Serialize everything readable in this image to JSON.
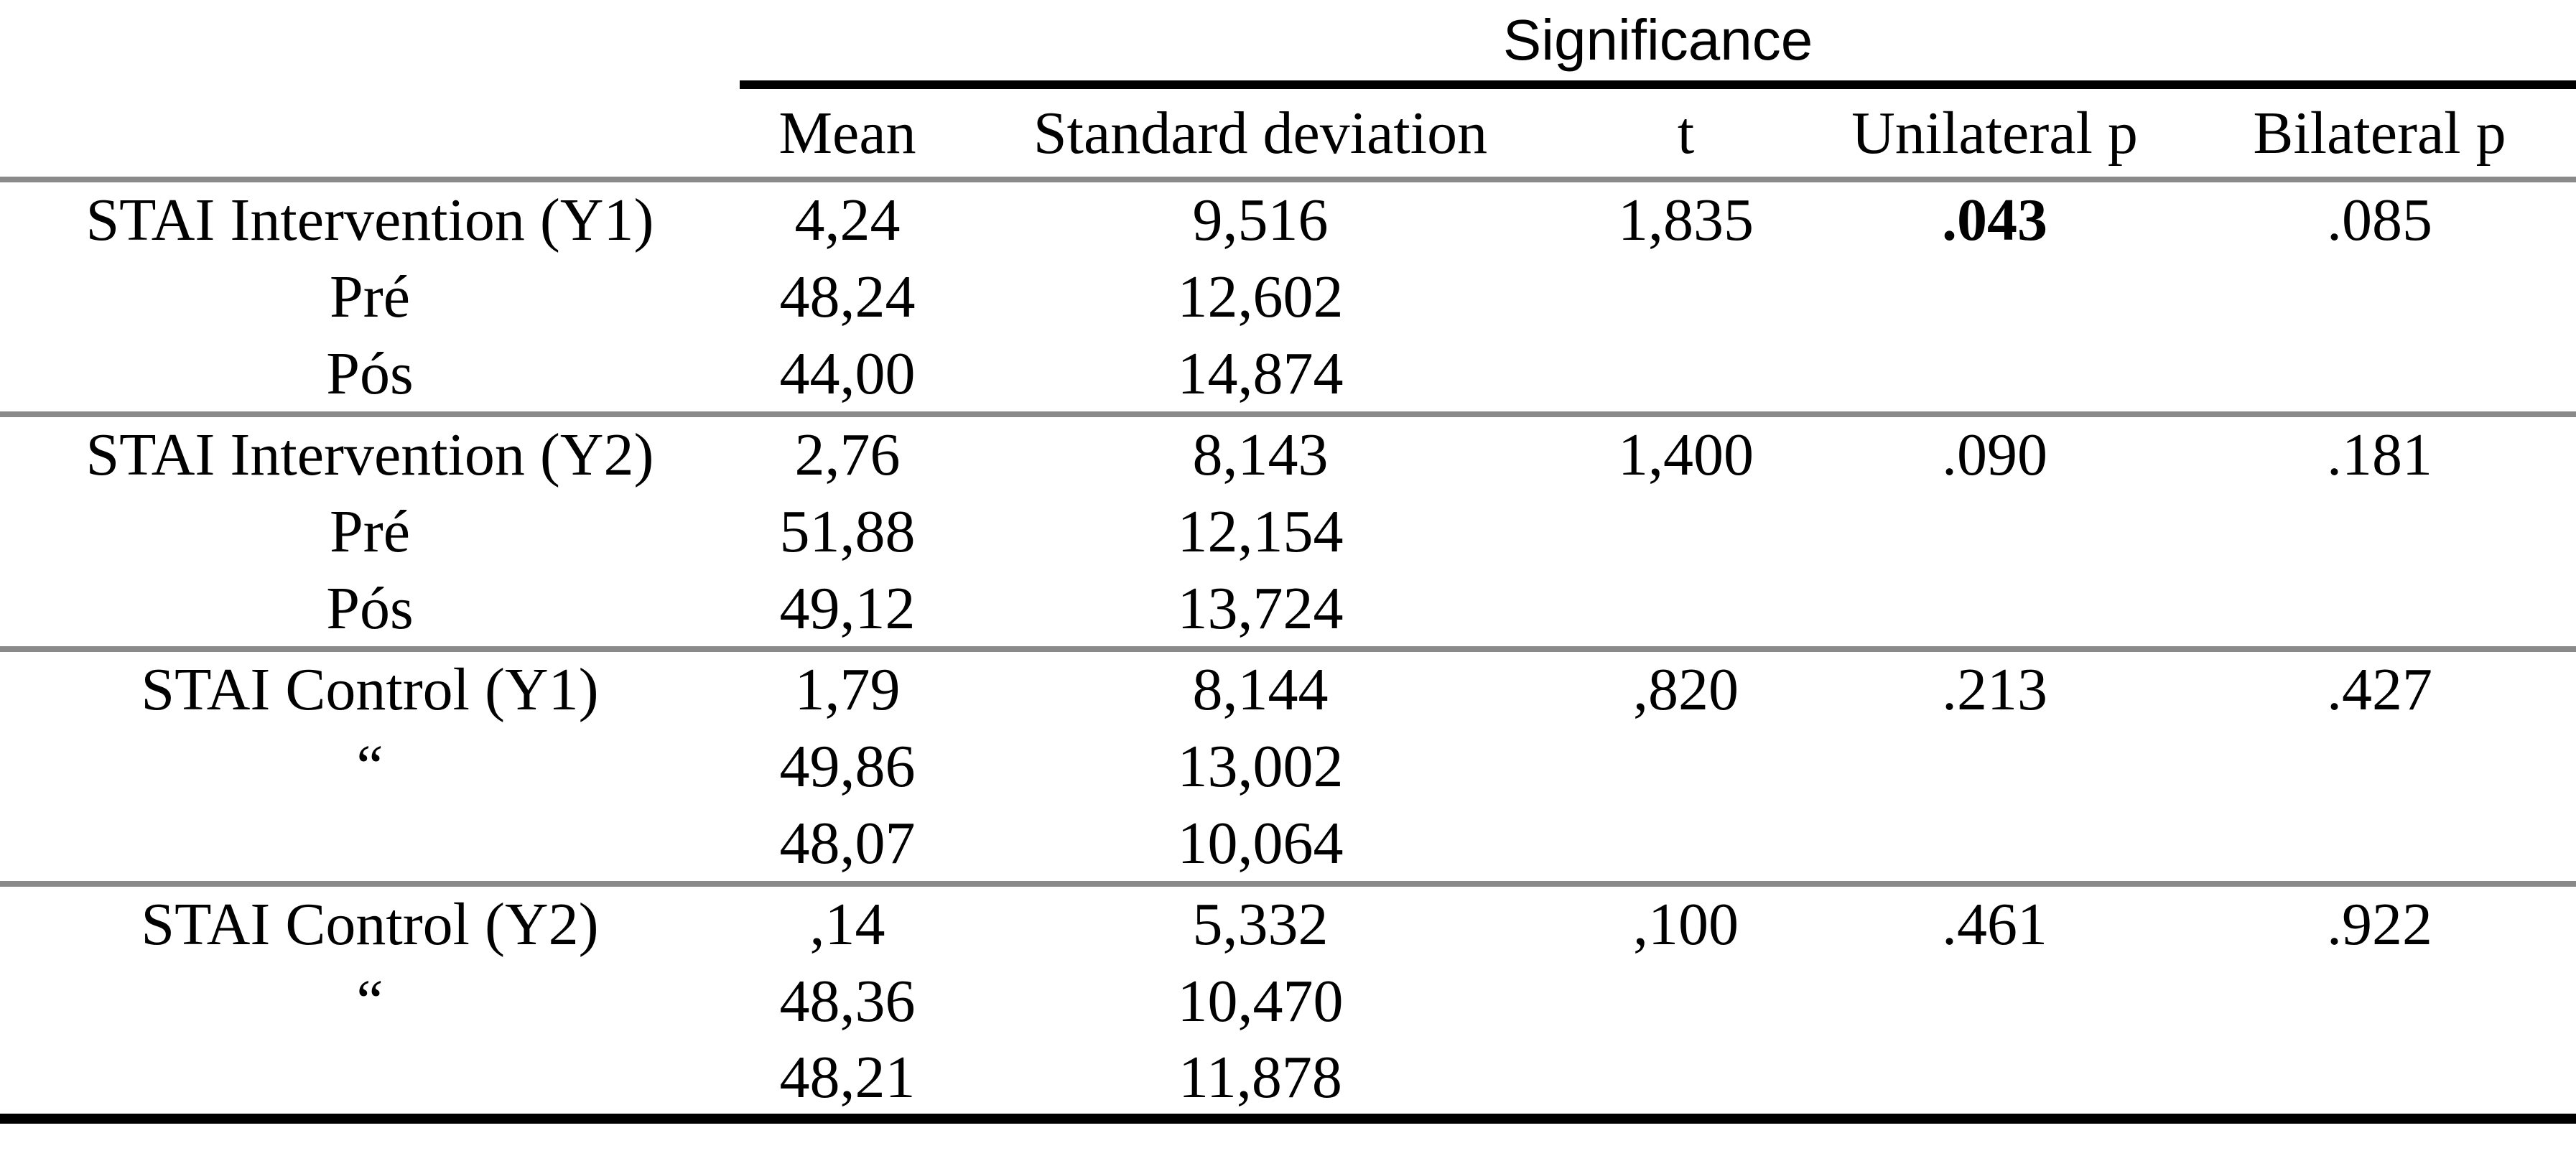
{
  "table": {
    "span_header": "Significance",
    "columns": {
      "label": "",
      "mean": "Mean",
      "sd": "Standard deviation",
      "t": "t",
      "unilateral_p": "Unilateral p",
      "bilateral_p": "Bilateral p"
    },
    "groups": [
      {
        "rows": [
          {
            "label": "STAI Intervention (Y1)",
            "mean": "4,24",
            "sd": "9,516",
            "t": "1,835",
            "unilateral_p": ".043",
            "bilateral_p": ".085"
          },
          {
            "label": "Pré",
            "mean": "48,24",
            "sd": "12,602",
            "t": "",
            "unilateral_p": "",
            "bilateral_p": ""
          },
          {
            "label": "Pós",
            "mean": "44,00",
            "sd": "14,874",
            "t": "",
            "unilateral_p": "",
            "bilateral_p": ""
          }
        ]
      },
      {
        "rows": [
          {
            "label": "STAI Intervention (Y2)",
            "mean": "2,76",
            "sd": "8,143",
            "t": "1,400",
            "unilateral_p": ".090",
            "bilateral_p": ".181"
          },
          {
            "label": "Pré",
            "mean": "51,88",
            "sd": "12,154",
            "t": "",
            "unilateral_p": "",
            "bilateral_p": ""
          },
          {
            "label": "Pós",
            "mean": "49,12",
            "sd": "13,724",
            "t": "",
            "unilateral_p": "",
            "bilateral_p": ""
          }
        ]
      },
      {
        "rows": [
          {
            "label": "STAI Control (Y1)",
            "mean": "1,79",
            "sd": "8,144",
            "t": ",820",
            "unilateral_p": ".213",
            "bilateral_p": ".427"
          },
          {
            "label": "“",
            "mean": "49,86",
            "sd": "13,002",
            "t": "",
            "unilateral_p": "",
            "bilateral_p": ""
          },
          {
            "label": "",
            "mean": "48,07",
            "sd": "10,064",
            "t": "",
            "unilateral_p": "",
            "bilateral_p": ""
          }
        ]
      },
      {
        "rows": [
          {
            "label": "STAI Control (Y2)",
            "mean": ",14",
            "sd": "5,332",
            "t": ",100",
            "unilateral_p": ".461",
            "bilateral_p": ".922"
          },
          {
            "label": "“",
            "mean": "48,36",
            "sd": "10,470",
            "t": "",
            "unilateral_p": "",
            "bilateral_p": ""
          },
          {
            "label": "",
            "mean": "48,21",
            "sd": "11,878",
            "t": "",
            "unilateral_p": "",
            "bilateral_p": ""
          }
        ]
      }
    ]
  },
  "colors": {
    "rule_black": "#000000",
    "rule_gray": "#8a8a8a",
    "text": "#000000",
    "background": "#ffffff"
  }
}
